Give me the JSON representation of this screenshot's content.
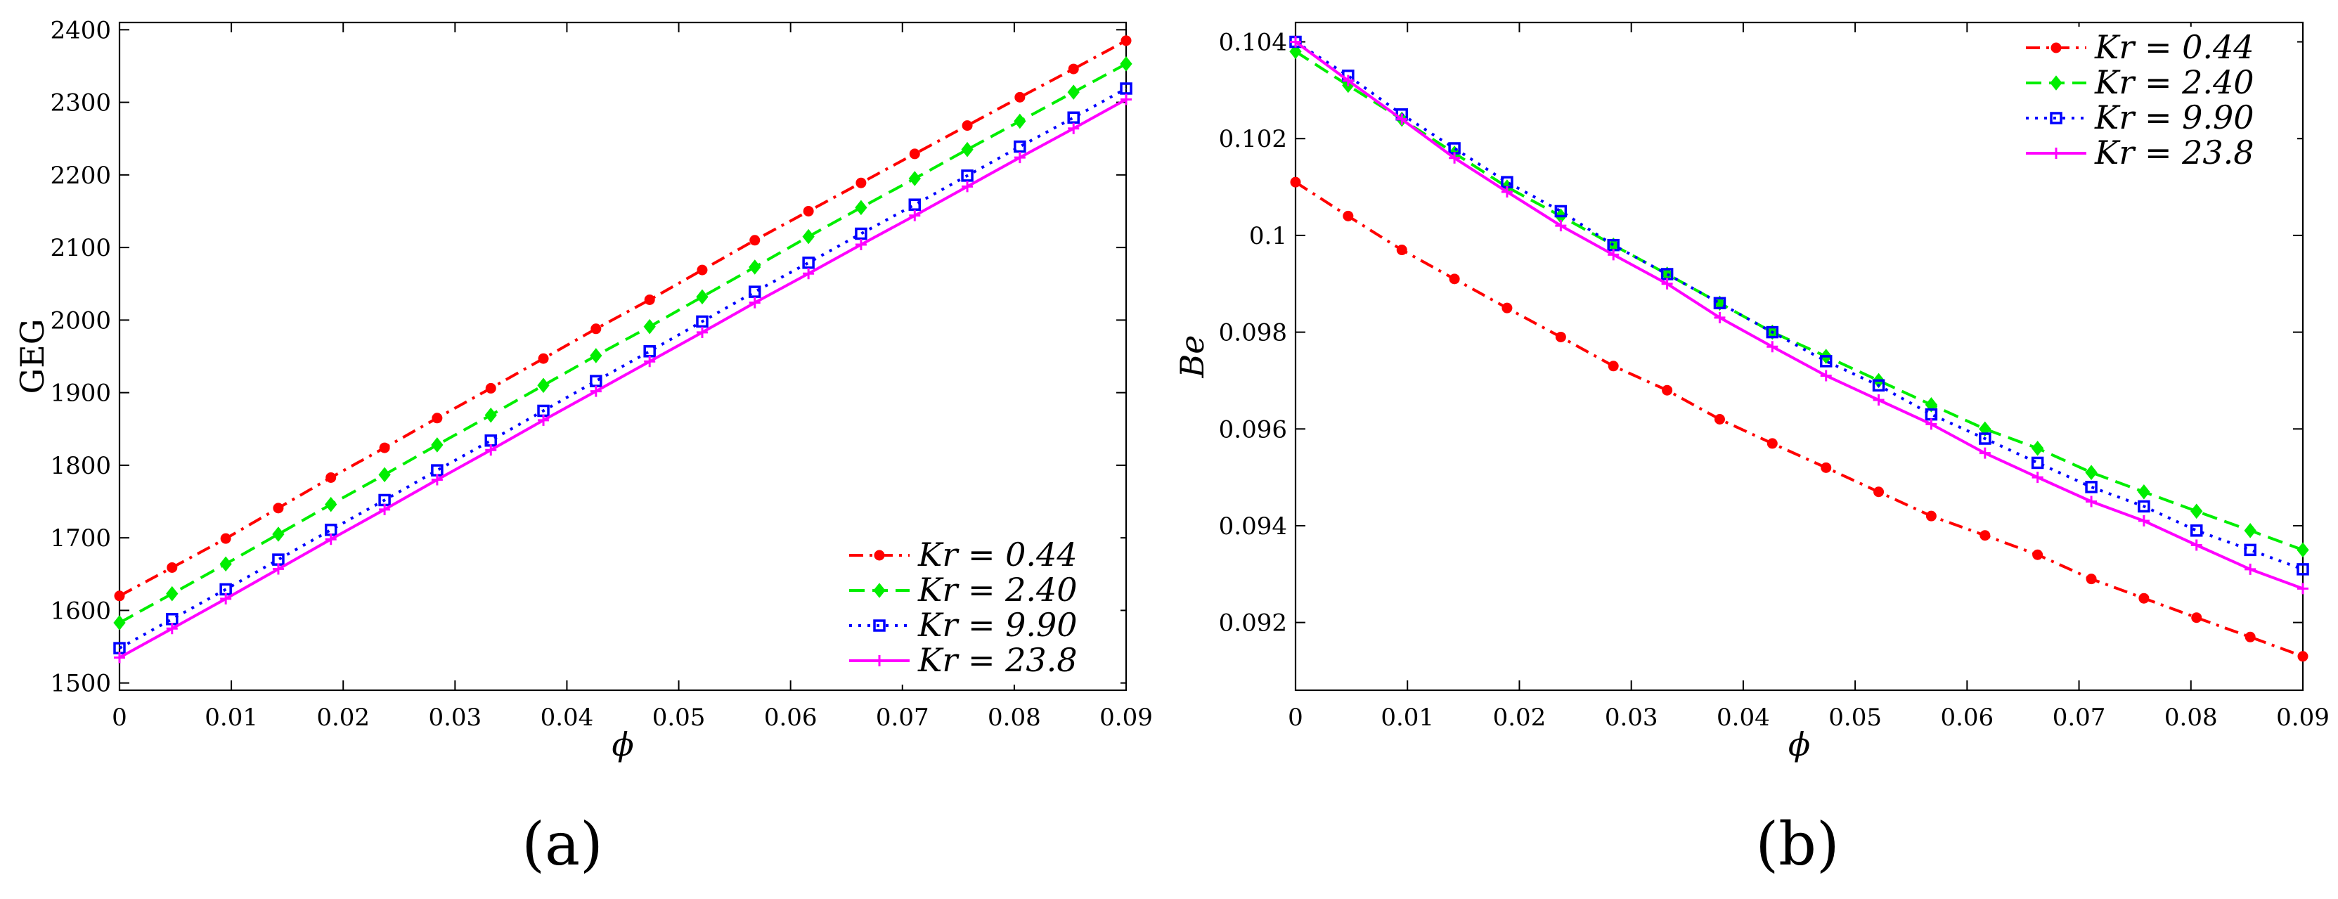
{
  "chart_data": [
    {
      "type": "line",
      "panel": "(a)",
      "title": "",
      "xlabel": "ϕ",
      "ylabel": "GEG",
      "xlim": [
        0,
        0.09
      ],
      "ylim": [
        1490,
        2410
      ],
      "x_ticks": [
        0,
        0.01,
        0.02,
        0.03,
        0.04,
        0.05,
        0.06,
        0.07,
        0.08,
        0.09
      ],
      "x_tick_labels": [
        "0",
        "0.01",
        "0.02",
        "0.03",
        "0.04",
        "0.05",
        "0.06",
        "0.07",
        "0.08",
        "0.09"
      ],
      "y_ticks": [
        1500,
        1600,
        1700,
        1800,
        1900,
        2000,
        2100,
        2200,
        2300,
        2400
      ],
      "y_tick_labels": [
        "1500",
        "1600",
        "1700",
        "1800",
        "1900",
        "2000",
        "2100",
        "2200",
        "2300",
        "2400"
      ],
      "legend_position": "bottom-right",
      "x": [
        0,
        0.0047,
        0.0095,
        0.0142,
        0.0189,
        0.0237,
        0.0284,
        0.0332,
        0.0379,
        0.0426,
        0.0474,
        0.0521,
        0.0568,
        0.0616,
        0.0663,
        0.0711,
        0.0758,
        0.0805,
        0.0853,
        0.09
      ],
      "series": [
        {
          "name": "K_r = 0.44",
          "legend_label": "Kr = 0.44",
          "color": "#ff0000",
          "dash": "dashdot",
          "marker": "dot",
          "values": [
            1620,
            1659,
            1699,
            1741,
            1783,
            1824,
            1865,
            1906,
            1947,
            1988,
            2028,
            2069,
            2110,
            2150,
            2189,
            2229,
            2268,
            2307,
            2346,
            2385
          ]
        },
        {
          "name": "K_r = 2.40",
          "legend_label": "Kr = 2.40",
          "color": "#00ee00",
          "dash": "dashed",
          "marker": "diamond",
          "values": [
            1583,
            1623,
            1664,
            1705,
            1746,
            1787,
            1828,
            1869,
            1910,
            1951,
            1991,
            2032,
            2073,
            2115,
            2155,
            2195,
            2235,
            2274,
            2314,
            2353
          ]
        },
        {
          "name": "K_r = 9.90",
          "legend_label": "Kr = 9.90",
          "color": "#0000ff",
          "dash": "dotted",
          "marker": "square",
          "values": [
            1548,
            1588,
            1629,
            1670,
            1711,
            1752,
            1793,
            1834,
            1875,
            1916,
            1957,
            1998,
            2039,
            2079,
            2119,
            2159,
            2199,
            2239,
            2279,
            2319
          ]
        },
        {
          "name": "K_r = 23.8",
          "legend_label": "Kr = 23.8",
          "color": "#ff00ff",
          "dash": "solid",
          "marker": "plus",
          "values": [
            1535,
            1575,
            1616,
            1657,
            1698,
            1739,
            1780,
            1821,
            1862,
            1902,
            1943,
            1983,
            2024,
            2064,
            2104,
            2144,
            2184,
            2224,
            2264,
            2304
          ]
        }
      ]
    },
    {
      "type": "line",
      "panel": "(b)",
      "title": "",
      "xlabel": "ϕ",
      "ylabel": "Be",
      "xlim": [
        0,
        0.09
      ],
      "ylim": [
        0.0906,
        0.1044
      ],
      "x_ticks": [
        0,
        0.01,
        0.02,
        0.03,
        0.04,
        0.05,
        0.06,
        0.07,
        0.08,
        0.09
      ],
      "x_tick_labels": [
        "0",
        "0.01",
        "0.02",
        "0.03",
        "0.04",
        "0.05",
        "0.06",
        "0.07",
        "0.08",
        "0.09"
      ],
      "y_ticks": [
        0.092,
        0.094,
        0.096,
        0.098,
        0.1,
        0.102,
        0.104
      ],
      "y_tick_labels": [
        "0.092",
        "0.094",
        "0.096",
        "0.098",
        "0.1",
        "0.102",
        "0.104"
      ],
      "legend_position": "top-right",
      "x": [
        0,
        0.0047,
        0.0095,
        0.0142,
        0.0189,
        0.0237,
        0.0284,
        0.0332,
        0.0379,
        0.0426,
        0.0474,
        0.0521,
        0.0568,
        0.0616,
        0.0663,
        0.0711,
        0.0758,
        0.0805,
        0.0853,
        0.09
      ],
      "series": [
        {
          "name": "K_r = 0.44",
          "legend_label": "Kr = 0.44",
          "color": "#ff0000",
          "dash": "dashdot",
          "marker": "dot",
          "values": [
            0.1011,
            0.1004,
            0.0997,
            0.0991,
            0.0985,
            0.0979,
            0.0973,
            0.0968,
            0.0962,
            0.0957,
            0.0952,
            0.0947,
            0.0942,
            0.0938,
            0.0934,
            0.0929,
            0.0925,
            0.0921,
            0.0917,
            0.0913
          ]
        },
        {
          "name": "K_r = 2.40",
          "legend_label": "Kr = 2.40",
          "color": "#00ee00",
          "dash": "dashed",
          "marker": "diamond",
          "values": [
            0.1038,
            0.1031,
            0.1024,
            0.1017,
            0.101,
            0.1004,
            0.0998,
            0.0992,
            0.0986,
            0.098,
            0.0975,
            0.097,
            0.0965,
            0.096,
            0.0956,
            0.0951,
            0.0947,
            0.0943,
            0.0939,
            0.0935
          ]
        },
        {
          "name": "K_r = 9.90",
          "legend_label": "Kr = 9.90",
          "color": "#0000ff",
          "dash": "dotted",
          "marker": "square",
          "values": [
            0.104,
            0.1033,
            0.1025,
            0.1018,
            0.1011,
            0.1005,
            0.0998,
            0.0992,
            0.0986,
            0.098,
            0.0974,
            0.0969,
            0.0963,
            0.0958,
            0.0953,
            0.0948,
            0.0944,
            0.0939,
            0.0935,
            0.0931
          ]
        },
        {
          "name": "K_r = 23.8",
          "legend_label": "Kr = 23.8",
          "color": "#ff00ff",
          "dash": "solid",
          "marker": "plus",
          "values": [
            0.104,
            0.1032,
            0.1024,
            0.1016,
            0.1009,
            0.1002,
            0.0996,
            0.099,
            0.0983,
            0.0977,
            0.0971,
            0.0966,
            0.0961,
            0.0955,
            0.095,
            0.0945,
            0.0941,
            0.0936,
            0.0931,
            0.0927
          ]
        }
      ]
    }
  ]
}
